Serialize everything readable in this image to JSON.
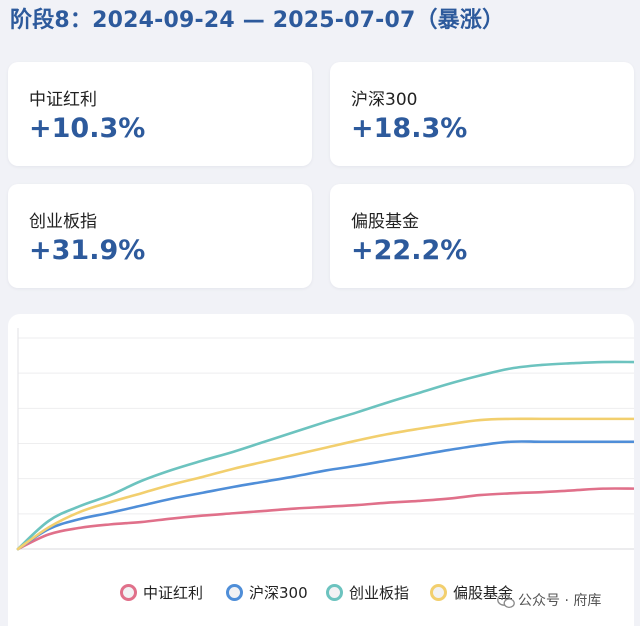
{
  "title": "阶段8：2024-09-24 — 2025-07-07（暴涨）",
  "cards": [
    {
      "label": "中证红利",
      "value": "+10.3%"
    },
    {
      "label": "沪深300",
      "value": "+18.3%"
    },
    {
      "label": "创业板指",
      "value": "+31.9%"
    },
    {
      "label": "偏股基金",
      "value": "+22.2%"
    }
  ],
  "colors": {
    "accent": "#2d5a9c",
    "background": "#f1f2f7",
    "card": "#ffffff"
  },
  "chart_data": {
    "type": "line",
    "title": "",
    "xlabel": "",
    "ylabel": "",
    "ylim": [
      0,
      36
    ],
    "grid": "horizontal",
    "legend": "bottom",
    "x": [
      0,
      1,
      2,
      3,
      4,
      5,
      6,
      7,
      8,
      9,
      10,
      11,
      12,
      13,
      14,
      15,
      16,
      17,
      18,
      19,
      20
    ],
    "series": [
      {
        "name": "中证红利",
        "color": "#e0708a",
        "values": [
          0,
          2.5,
          3.6,
          4.2,
          4.6,
          5.2,
          5.7,
          6.1,
          6.5,
          6.9,
          7.2,
          7.5,
          7.9,
          8.2,
          8.6,
          9.2,
          9.5,
          9.7,
          10.0,
          10.3,
          10.3
        ]
      },
      {
        "name": "沪深300",
        "color": "#4f8ed8",
        "values": [
          0,
          3.4,
          5.1,
          6.2,
          7.4,
          8.6,
          9.6,
          10.6,
          11.5,
          12.4,
          13.4,
          14.2,
          15.1,
          16.0,
          16.9,
          17.7,
          18.3,
          18.3,
          18.3,
          18.3,
          18.3
        ]
      },
      {
        "name": "创业板指",
        "color": "#6cc3bf",
        "values": [
          0,
          4.8,
          7.3,
          9.2,
          11.6,
          13.5,
          15.1,
          16.6,
          18.3,
          20.0,
          21.7,
          23.3,
          25.0,
          26.6,
          28.2,
          29.6,
          30.8,
          31.4,
          31.7,
          31.9,
          31.9
        ]
      },
      {
        "name": "偏股基金",
        "color": "#f2cf6e",
        "values": [
          0,
          3.7,
          6.3,
          8.0,
          9.5,
          11.0,
          12.3,
          13.7,
          14.9,
          16.1,
          17.3,
          18.5,
          19.6,
          20.5,
          21.3,
          22.0,
          22.2,
          22.2,
          22.2,
          22.2,
          22.2
        ]
      }
    ]
  },
  "watermark": {
    "icon": "wechat-icon",
    "text": "公众号 · 府库"
  }
}
